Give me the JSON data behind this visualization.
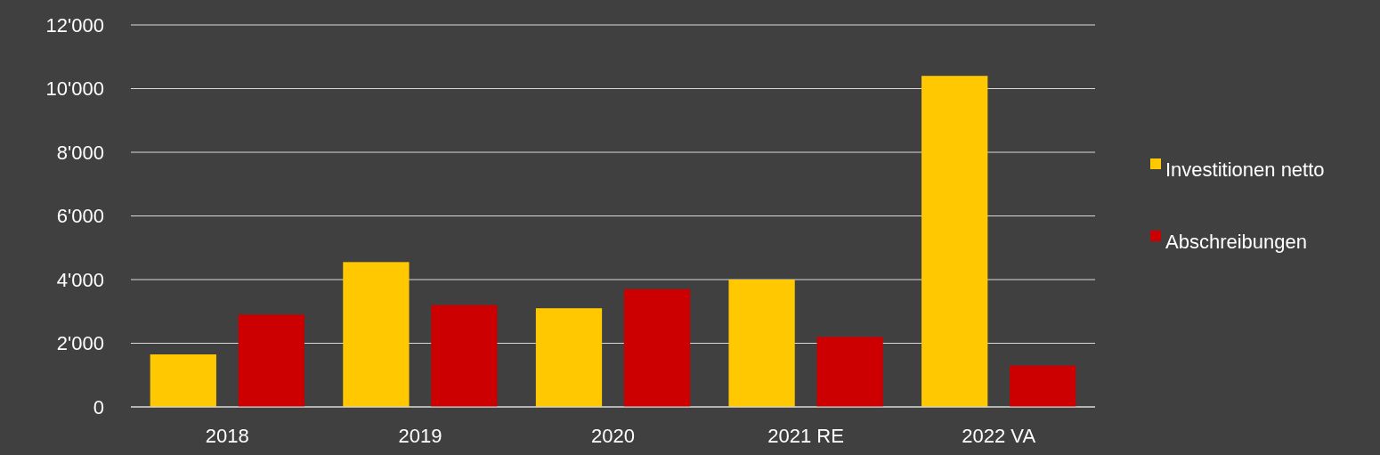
{
  "chart_data": {
    "type": "bar",
    "categories": [
      "2018",
      "2019",
      "2020",
      "2021 RE",
      "2022 VA"
    ],
    "series": [
      {
        "name": "Investitionen netto",
        "color": "#ffc800",
        "values": [
          1650,
          4550,
          3100,
          4000,
          10400
        ]
      },
      {
        "name": "Abschreibungen",
        "color": "#cc0000",
        "values": [
          2900,
          3200,
          3700,
          2200,
          1300
        ]
      }
    ],
    "ylim": [
      0,
      12000
    ],
    "yticks": [
      0,
      {
        "value": 2000,
        "label": "2'000"
      },
      {
        "value": 4000,
        "label": "4'000"
      },
      {
        "value": 6000,
        "label": "6'000"
      },
      {
        "value": 8000,
        "label": "8'000"
      },
      {
        "value": 10000,
        "label": "10'000"
      },
      {
        "value": 12000,
        "label": "12'000"
      }
    ],
    "grid": "y",
    "legend": "right"
  }
}
